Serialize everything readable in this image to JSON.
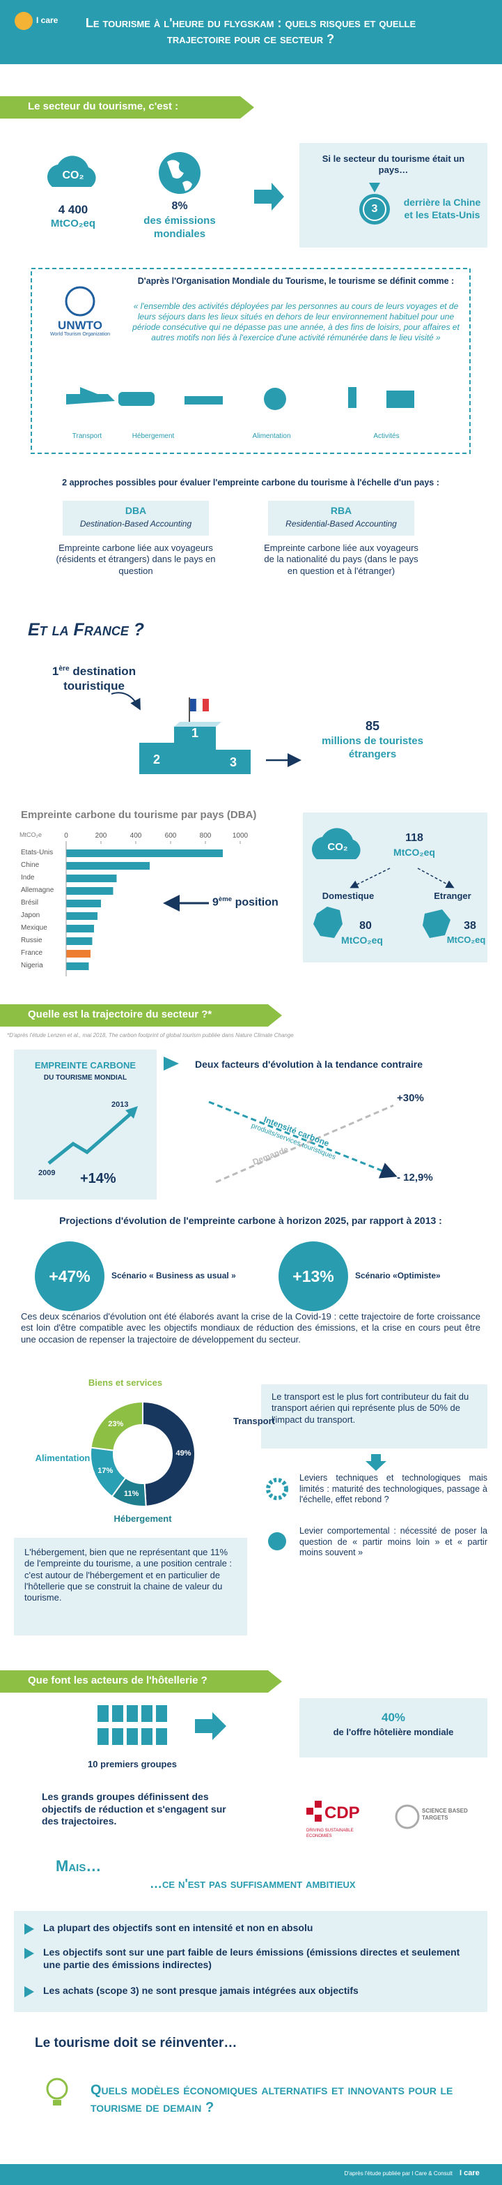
{
  "header": {
    "logo": "I care",
    "title": "Le tourisme à l'heure du flygskam : quels risques et quelle trajectoire pour ce secteur ?"
  },
  "sector": {
    "heading": "Le secteur du tourisme, c'est :",
    "co2_icon": "CO₂",
    "emissions": "4 400",
    "emissions_unit": "MtCO₂eq",
    "share": "8%",
    "share_label": "des émissions mondiales",
    "country_intro": "Si le secteur du tourisme était un pays…",
    "rank": "3",
    "rank_label": "derrière la Chine et les Etats-Unis"
  },
  "definition": {
    "logo": "UNWTO",
    "logo_sub": "World Tourism Organization",
    "intro": "D'après l'Organisation Mondiale du Tourisme, le tourisme se définit comme :",
    "quote": "« l'ensemble des activités déployées par les personnes au cours de leurs voyages et de leurs séjours dans les lieux situés en dehors de leur environnement habituel pour une période consécutive qui ne dépasse pas une année, à des fins de loisirs, pour affaires et autres motifs non liés à l'exercice d'une activité rémunérée dans le lieu visité »",
    "activities": [
      "Transport",
      "Hébergement",
      "Alimentation",
      "Activités"
    ]
  },
  "approaches": {
    "intro": "2 approches possibles pour évaluer l'empreinte carbone du tourisme à l'échelle d'un pays :",
    "items": [
      {
        "code": "DBA",
        "name": "Destination-Based Accounting",
        "description": "Empreinte carbone liée aux voyageurs (résidents et étrangers) dans le pays en question"
      },
      {
        "code": "RBA",
        "name": "Residential-Based Accounting",
        "description": "Empreinte carbone liée aux voyageurs de la nationalité du pays (dans le pays en question et à l'étranger)"
      }
    ]
  },
  "france": {
    "heading": "Et la France ?",
    "rank_number": "1",
    "rank_suffix": "ère",
    "rank_label": "destination touristique",
    "podium": [
      "1",
      "2",
      "3"
    ],
    "tourists": "85",
    "tourists_label": "millions de touristes étrangers",
    "rank_callout_number": "9",
    "rank_callout_suffix": "ème",
    "rank_callout_label": "position",
    "breakdown": {
      "total": "118",
      "unit": "MtCO₂eq",
      "domestic_label": "Domestique",
      "domestic": "80",
      "foreign_label": "Etranger",
      "foreign": "38"
    }
  },
  "chart_data": [
    {
      "type": "bar",
      "orientation": "horizontal",
      "title": "Empreinte carbone du tourisme par pays (DBA)",
      "xlabel": "MtCO₂e",
      "categories": [
        "Etats-Unis",
        "Chine",
        "Inde",
        "Allemagne",
        "Brésil",
        "Japon",
        "Mexique",
        "Russie",
        "France",
        "Nigeria"
      ],
      "values": [
        900,
        480,
        290,
        270,
        200,
        180,
        160,
        150,
        140,
        130
      ],
      "colors": [
        "#2a9cb0",
        "#2a9cb0",
        "#2a9cb0",
        "#2a9cb0",
        "#2a9cb0",
        "#2a9cb0",
        "#2a9cb0",
        "#2a9cb0",
        "#ed7d31",
        "#2a9cb0"
      ],
      "xlim": [
        0,
        1000
      ],
      "xticks": [
        0,
        200,
        400,
        600,
        800,
        1000
      ]
    },
    {
      "type": "pie",
      "donut": true,
      "categories": [
        "Transport",
        "Hébergement",
        "Alimentation",
        "Biens et services"
      ],
      "values": [
        49,
        11,
        17,
        23
      ],
      "value_labels": [
        "49%",
        "11%",
        "17%",
        "23%"
      ],
      "colors": [
        "#17375e",
        "#1f7f8e",
        "#2aa0b5",
        "#8dbf45"
      ]
    }
  ],
  "trajectory": {
    "heading": "Quelle est la trajectoire du secteur ?*",
    "footnote": "*D'après l'étude Lenzen et al., mai 2018, The carbon footprint of global tourism publiée dans Nature Climate Change",
    "world_title": "Empreinte carbone",
    "world_subtitle": "du tourisme mondial",
    "year_end": "2013",
    "year_start": "2009",
    "growth": "+14%",
    "factors_title": "Deux facteurs d'évolution à la tendance contraire",
    "intensity_label": "Intensité carbone",
    "intensity_sub": "produits/services touristiques",
    "demand_label": "Demande",
    "demand_change": "+30%",
    "intensity_change": "- 12,9%",
    "projections_title": "Projections d'évolution de l'empreinte carbone à horizon 2025, par rapport à 2013 :",
    "scenarios": [
      {
        "change": "+47%",
        "label": "Scénario « Business as usual »"
      },
      {
        "change": "+13%",
        "label": "Scénario «Optimiste»"
      }
    ],
    "covid_text": "Ces deux scénarios d'évolution ont été élaborés avant la crise de la Covid-19 : cette trajectoire de forte croissance est loin d'être compatible avec les objectifs mondiaux de réduction des émissions, et la crise en cours peut être une occasion de repenser la trajectoire de développement du secteur."
  },
  "levers": {
    "transport_text": "Le transport est le plus fort contributeur du fait du transport aérien qui représente plus de 50% de l'impact du transport.",
    "technical": "Leviers techniques et technologiques mais limités : maturité des technologiques, passage à l'échelle, effet rebond ?",
    "behavioural": "Levier comportemental : nécessité de poser la question de « partir moins loin » et « partir moins souvent »",
    "accommodation_text": "L'hébergement, bien que ne représentant que 11% de l'empreinte du tourisme, a une position centrale : c'est autour de l'hébergement et en particulier de l'hôtellerie que se construit la chaine de valeur du tourisme."
  },
  "hotels": {
    "heading": "Que font les acteurs de l'hôtellerie ?",
    "groups_label": "10 premiers groupes",
    "share": "40%",
    "share_label": "de l'offre hôtelière mondiale",
    "commitments": "Les grands groupes définissent des objectifs de réduction et s'engagent sur des trajectoires.",
    "cdp": "CDP",
    "cdp_sub": "DRIVING SUSTAINABLE ECONOMIES",
    "sbt": "SCIENCE BASED TARGETS",
    "but": "Mais…",
    "not_enough": "…ce n'est pas suffisamment ambitieux",
    "issues": [
      "La plupart des objectifs sont en intensité et non en absolu",
      "Les objectifs sont sur une part faible de leurs émissions (émissions directes et seulement une partie des émissions indirectes)",
      "Les achats (scope 3) ne sont presque jamais intégrées aux objectifs"
    ]
  },
  "conclusion": {
    "reinvent": "Le tourisme doit se réinventer…",
    "question": "Quels modèles économiques alternatifs et innovants pour le tourisme de demain ?"
  },
  "footer": {
    "source": "D'après l'étude publiée par I Care & Consult",
    "logo": "I care"
  }
}
